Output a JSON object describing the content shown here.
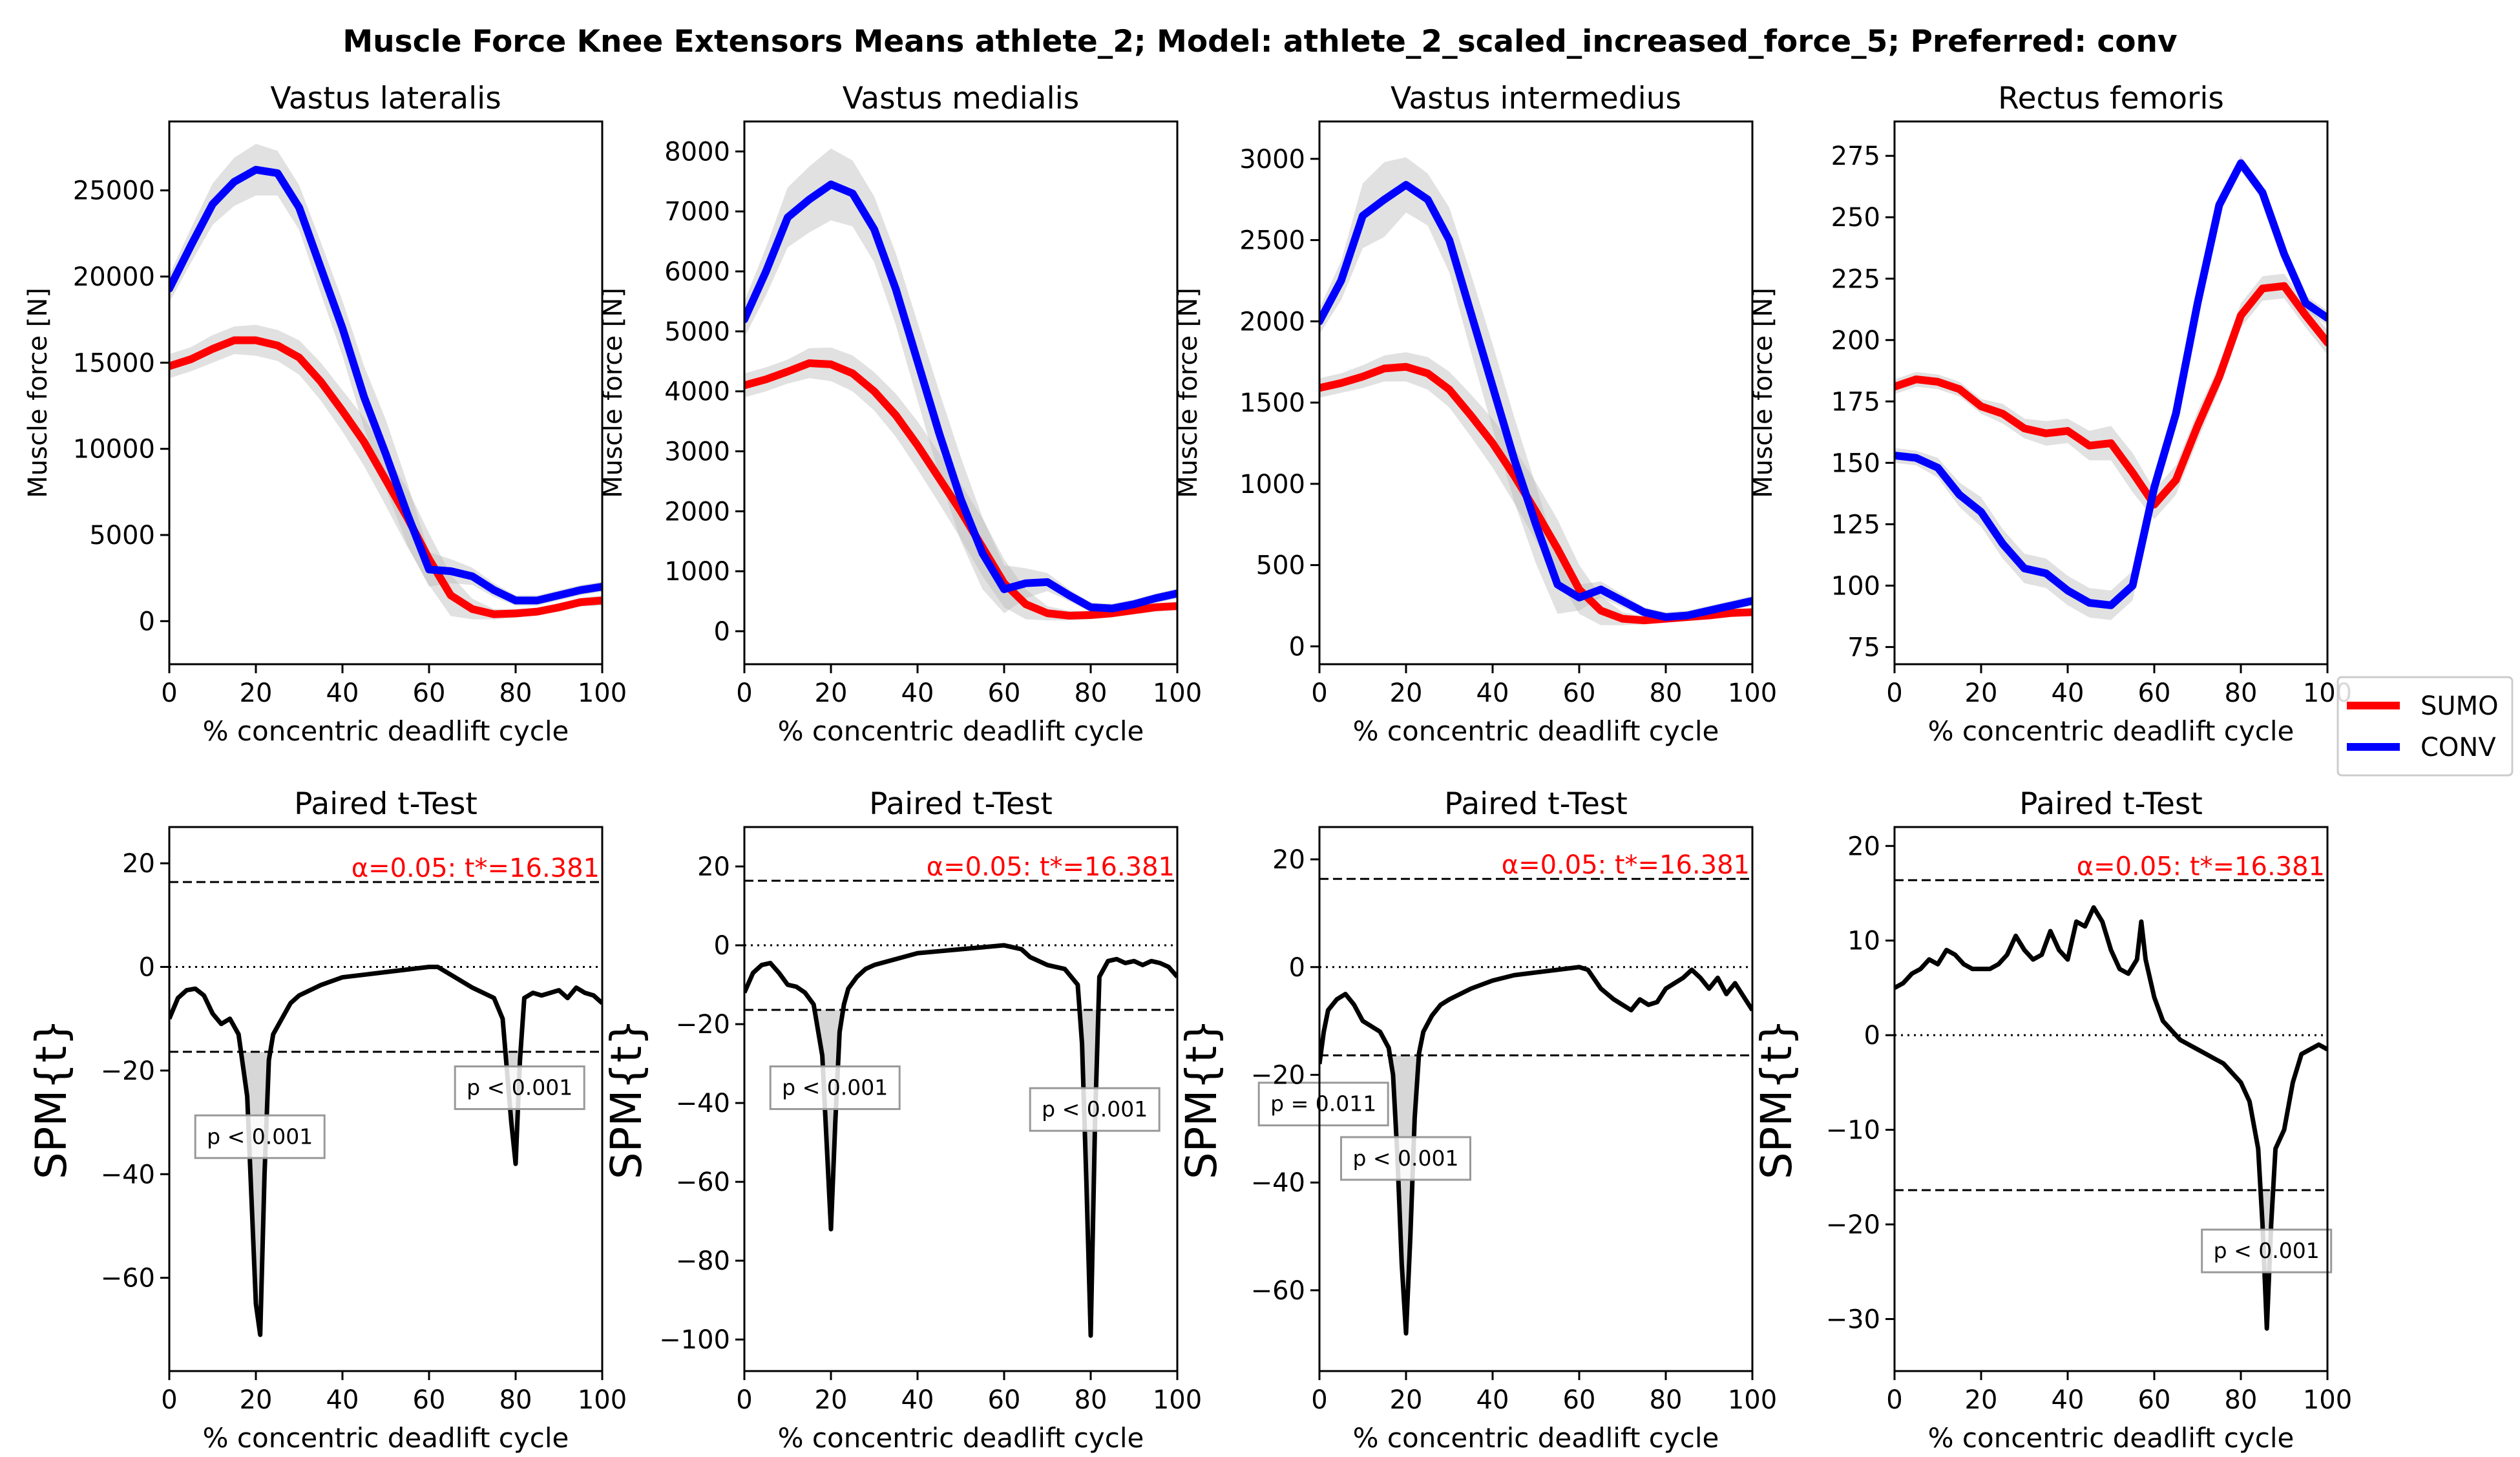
{
  "figure": {
    "title": "Muscle Force Knee Extensors Means athlete_2; Model: athlete_2_scaled_increased_force_5; Preferred: conv",
    "legend": [
      {
        "label": "SUMO",
        "color": "#ff0000"
      },
      {
        "label": "CONV",
        "color": "#0000ff"
      }
    ],
    "legend_placement": "right, between rows"
  },
  "chart_data": [
    {
      "type": "line",
      "title": "Vastus lateralis",
      "xlabel": "% concentric deadlift cycle",
      "ylabel": "Muscle force [N]",
      "xlim": [
        0,
        100
      ],
      "ylim": [
        -2500,
        29000
      ],
      "xticks": [
        0,
        20,
        40,
        60,
        80,
        100
      ],
      "yticks": [
        0,
        5000,
        10000,
        15000,
        20000,
        25000
      ],
      "x": [
        0,
        5,
        10,
        15,
        20,
        25,
        30,
        35,
        40,
        45,
        50,
        55,
        60,
        65,
        70,
        75,
        80,
        85,
        90,
        95,
        100
      ],
      "series": [
        {
          "name": "SUMO",
          "color": "#ff0000",
          "values": [
            14800,
            15200,
            15800,
            16300,
            16300,
            16000,
            15300,
            13900,
            12200,
            10400,
            8200,
            6000,
            3600,
            1500,
            700,
            400,
            450,
            550,
            800,
            1100,
            1200
          ],
          "sd": [
            700,
            700,
            800,
            800,
            900,
            900,
            1000,
            1100,
            1200,
            1400,
            1500,
            1700,
            1500,
            1200,
            600,
            300,
            250,
            200,
            250,
            250,
            300
          ]
        },
        {
          "name": "CONV",
          "color": "#0000ff",
          "values": [
            19300,
            21800,
            24200,
            25500,
            26200,
            26000,
            24000,
            20500,
            17000,
            13000,
            9700,
            6200,
            3000,
            2900,
            2600,
            1800,
            1200,
            1200,
            1500,
            1800,
            2000
          ],
          "sd": [
            800,
            1000,
            1200,
            1400,
            1500,
            1300,
            1300,
            1500,
            1600,
            1800,
            2000,
            1800,
            1000,
            700,
            500,
            400,
            300,
            300,
            300,
            300,
            300
          ]
        }
      ]
    },
    {
      "type": "line",
      "title": "Vastus medialis",
      "xlabel": "% concentric deadlift cycle",
      "ylabel": "Muscle force [N]",
      "xlim": [
        0,
        100
      ],
      "ylim": [
        -550,
        8500
      ],
      "xticks": [
        0,
        20,
        40,
        60,
        80,
        100
      ],
      "yticks": [
        0,
        1000,
        2000,
        3000,
        4000,
        5000,
        6000,
        7000,
        8000
      ],
      "x": [
        0,
        5,
        10,
        15,
        20,
        25,
        30,
        35,
        40,
        45,
        50,
        55,
        60,
        65,
        70,
        75,
        80,
        85,
        90,
        95,
        100
      ],
      "series": [
        {
          "name": "SUMO",
          "color": "#ff0000",
          "values": [
            4100,
            4200,
            4330,
            4470,
            4450,
            4300,
            4000,
            3600,
            3100,
            2550,
            2000,
            1400,
            800,
            450,
            300,
            260,
            270,
            300,
            350,
            400,
            420
          ],
          "sd": [
            200,
            200,
            200,
            250,
            280,
            300,
            320,
            360,
            400,
            420,
            460,
            480,
            400,
            250,
            120,
            80,
            70,
            70,
            70,
            70,
            70
          ]
        },
        {
          "name": "CONV",
          "color": "#0000ff",
          "values": [
            5200,
            6000,
            6900,
            7200,
            7450,
            7300,
            6700,
            5700,
            4500,
            3300,
            2200,
            1300,
            700,
            800,
            820,
            600,
            400,
            380,
            450,
            550,
            630
          ],
          "sd": [
            300,
            400,
            500,
            550,
            600,
            550,
            550,
            600,
            650,
            700,
            700,
            600,
            400,
            250,
            150,
            100,
            80,
            80,
            80,
            80,
            80
          ]
        }
      ]
    },
    {
      "type": "line",
      "title": "Vastus intermedius",
      "xlabel": "% concentric deadlift cycle",
      "ylabel": "Muscle force [N]",
      "xlim": [
        0,
        100
      ],
      "ylim": [
        -110,
        3230
      ],
      "xticks": [
        0,
        20,
        40,
        60,
        80,
        100
      ],
      "yticks": [
        0,
        500,
        1000,
        1500,
        2000,
        2500,
        3000
      ],
      "x": [
        0,
        5,
        10,
        15,
        20,
        25,
        30,
        35,
        40,
        45,
        50,
        55,
        60,
        65,
        70,
        75,
        80,
        85,
        90,
        95,
        100
      ],
      "series": [
        {
          "name": "SUMO",
          "color": "#ff0000",
          "values": [
            1590,
            1620,
            1660,
            1710,
            1720,
            1680,
            1580,
            1420,
            1250,
            1050,
            830,
            600,
            350,
            220,
            170,
            160,
            170,
            180,
            190,
            205,
            210
          ],
          "sd": [
            60,
            60,
            70,
            80,
            90,
            100,
            110,
            130,
            150,
            170,
            180,
            180,
            150,
            90,
            40,
            25,
            20,
            20,
            20,
            20,
            20
          ]
        },
        {
          "name": "CONV",
          "color": "#0000ff",
          "values": [
            2000,
            2250,
            2650,
            2750,
            2840,
            2750,
            2500,
            2050,
            1600,
            1150,
            750,
            380,
            300,
            350,
            280,
            210,
            180,
            190,
            220,
            250,
            280
          ],
          "sd": [
            80,
            120,
            200,
            230,
            170,
            160,
            200,
            240,
            260,
            260,
            240,
            180,
            80,
            50,
            40,
            30,
            30,
            30,
            30,
            30,
            30
          ]
        }
      ]
    },
    {
      "type": "line",
      "title": "Rectus femoris",
      "xlabel": "% concentric deadlift cycle",
      "ylabel": "Muscle force [N]",
      "xlim": [
        0,
        100
      ],
      "ylim": [
        68,
        289
      ],
      "xticks": [
        0,
        20,
        40,
        60,
        80,
        100
      ],
      "yticks": [
        75,
        100,
        125,
        150,
        175,
        200,
        225,
        250,
        275
      ],
      "x": [
        0,
        5,
        10,
        15,
        20,
        25,
        30,
        35,
        40,
        45,
        50,
        55,
        60,
        65,
        70,
        75,
        80,
        85,
        90,
        95,
        100
      ],
      "series": [
        {
          "name": "SUMO",
          "color": "#ff0000",
          "values": [
            181,
            184,
            183,
            180,
            173,
            170,
            164,
            162,
            163,
            157,
            158,
            146,
            133,
            143,
            165,
            185,
            210,
            221,
            222,
            210,
            199
          ],
          "sd": [
            3,
            3,
            3,
            3,
            3,
            4,
            4,
            5,
            5,
            6,
            7,
            8,
            6,
            6,
            6,
            5,
            5,
            5,
            5,
            5,
            5
          ]
        },
        {
          "name": "CONV",
          "color": "#0000ff",
          "values": [
            153,
            152,
            148,
            137,
            130,
            117,
            107,
            105,
            98,
            93,
            92,
            100,
            140,
            170,
            215,
            255,
            272,
            260,
            235,
            215,
            209
          ],
          "sd": [
            3,
            3,
            4,
            5,
            6,
            6,
            6,
            6,
            6,
            6,
            6,
            6,
            6,
            6,
            5,
            4,
            3,
            3,
            3,
            3,
            3
          ]
        }
      ]
    },
    {
      "type": "line",
      "title": "Paired t-Test",
      "xlabel": "% concentric deadlift cycle",
      "ylabel": "SPM{t}",
      "xlim": [
        0,
        100
      ],
      "ylim": [
        -78,
        27
      ],
      "xticks": [
        0,
        20,
        40,
        60,
        80,
        100
      ],
      "yticks": [
        -60,
        -40,
        -20,
        0,
        20
      ],
      "threshold": 16.381,
      "alpha_label": "α=0.05:  t*=16.381",
      "x": [
        0,
        2,
        4,
        6,
        8,
        10,
        12,
        14,
        16,
        18,
        19,
        20,
        21,
        22,
        23,
        24,
        26,
        28,
        30,
        35,
        40,
        45,
        50,
        55,
        60,
        62,
        65,
        70,
        75,
        77,
        78,
        79,
        80,
        81,
        82,
        84,
        86,
        88,
        90,
        92,
        94,
        96,
        98,
        100
      ],
      "values": [
        -10,
        -6,
        -4.5,
        -4.2,
        -5.5,
        -9,
        -11,
        -10,
        -13,
        -25,
        -45,
        -65,
        -71,
        -40,
        -18,
        -13,
        -10,
        -7,
        -5.5,
        -3.5,
        -2,
        -1.5,
        -1,
        -0.5,
        0,
        0,
        -1.5,
        -4,
        -6,
        -10,
        -20,
        -30,
        -38,
        -18,
        -6,
        -5,
        -5.5,
        -5,
        -4.5,
        -6,
        -4,
        -5,
        -5.5,
        -7
      ],
      "annotations": [
        {
          "label": "p < 0.001",
          "x": 20
        },
        {
          "label": "p < 0.001",
          "x": 80
        }
      ]
    },
    {
      "type": "line",
      "title": "Paired t-Test",
      "xlabel": "% concentric deadlift cycle",
      "ylabel": "SPM{t}",
      "xlim": [
        0,
        100
      ],
      "ylim": [
        -108,
        30
      ],
      "xticks": [
        0,
        20,
        40,
        60,
        80,
        100
      ],
      "yticks": [
        -100,
        -80,
        -60,
        -40,
        -20,
        0,
        20
      ],
      "threshold": 16.381,
      "alpha_label": "α=0.05:  t*=16.381",
      "x": [
        0,
        2,
        4,
        6,
        8,
        10,
        12,
        14,
        16,
        18,
        19,
        20,
        21,
        22,
        23,
        24,
        26,
        28,
        30,
        35,
        40,
        45,
        50,
        55,
        60,
        64,
        66,
        70,
        74,
        77,
        78,
        79,
        80,
        81,
        82,
        84,
        86,
        88,
        90,
        92,
        94,
        96,
        98,
        100
      ],
      "values": [
        -12,
        -7,
        -5,
        -4.5,
        -7,
        -10,
        -10.5,
        -12,
        -15,
        -28,
        -50,
        -72,
        -45,
        -22,
        -15,
        -11,
        -8,
        -6,
        -5,
        -3.5,
        -2,
        -1.5,
        -1,
        -0.5,
        0,
        -1,
        -3,
        -5,
        -6,
        -10,
        -25,
        -60,
        -99,
        -45,
        -8,
        -4,
        -3.5,
        -4.5,
        -4,
        -5,
        -4,
        -4.5,
        -5.5,
        -8
      ],
      "annotations": [
        {
          "label": "p < 0.001",
          "x": 20
        },
        {
          "label": "p < 0.001",
          "x": 80
        }
      ]
    },
    {
      "type": "line",
      "title": "Paired t-Test",
      "xlabel": "% concentric deadlift cycle",
      "ylabel": "SPM{t}",
      "xlim": [
        0,
        100
      ],
      "ylim": [
        -75,
        26
      ],
      "xticks": [
        0,
        20,
        40,
        60,
        80,
        100
      ],
      "yticks": [
        -60,
        -40,
        -20,
        0,
        20
      ],
      "threshold": 16.381,
      "alpha_label": "α=0.05:  t*=16.381",
      "x": [
        0,
        1,
        2,
        4,
        6,
        8,
        10,
        12,
        14,
        16,
        17,
        18,
        19,
        20,
        21,
        22,
        23,
        24,
        26,
        28,
        30,
        35,
        40,
        45,
        50,
        55,
        60,
        62,
        65,
        68,
        70,
        72,
        74,
        76,
        78,
        80,
        82,
        84,
        86,
        88,
        90,
        92,
        94,
        96,
        98,
        100
      ],
      "values": [
        -18,
        -12,
        -8,
        -6,
        -5,
        -7,
        -10,
        -11,
        -12,
        -15,
        -20,
        -35,
        -55,
        -68,
        -50,
        -28,
        -16,
        -12,
        -9,
        -7,
        -6,
        -4,
        -2.5,
        -1.5,
        -1,
        -0.5,
        0,
        -0.5,
        -4,
        -6,
        -7,
        -8,
        -6,
        -7,
        -6.5,
        -4,
        -3,
        -2,
        -0.5,
        -2,
        -4,
        -2,
        -5,
        -3,
        -5.5,
        -8
      ],
      "annotations": [
        {
          "label": "p = 0.011",
          "x": 0
        },
        {
          "label": "p < 0.001",
          "x": 20
        }
      ]
    },
    {
      "type": "line",
      "title": "Paired t-Test",
      "xlabel": "% concentric deadlift cycle",
      "ylabel": "SPM{t}",
      "xlim": [
        0,
        100
      ],
      "ylim": [
        -35.5,
        22
      ],
      "xticks": [
        0,
        20,
        40,
        60,
        80,
        100
      ],
      "yticks": [
        -30,
        -20,
        -10,
        0,
        10,
        20
      ],
      "threshold": 16.381,
      "alpha_label": "α=0.05:  t*=16.381",
      "x": [
        0,
        2,
        4,
        6,
        8,
        10,
        12,
        14,
        16,
        18,
        20,
        22,
        24,
        26,
        28,
        30,
        32,
        34,
        36,
        38,
        40,
        42,
        44,
        46,
        48,
        50,
        52,
        54,
        56,
        57,
        58,
        60,
        62,
        64,
        66,
        68,
        70,
        72,
        74,
        76,
        78,
        80,
        82,
        84,
        85,
        86,
        87,
        88,
        90,
        92,
        94,
        96,
        98,
        100
      ],
      "values": [
        5,
        5.5,
        6.5,
        7,
        8,
        7.5,
        9,
        8.5,
        7.5,
        7,
        7,
        7,
        7.5,
        8.5,
        10.5,
        9,
        8,
        8.5,
        11,
        9,
        8,
        12,
        11.5,
        13.5,
        12,
        9,
        7,
        6.5,
        8,
        12,
        8,
        4,
        1.5,
        0.5,
        -0.5,
        -1,
        -1.5,
        -2,
        -2.5,
        -3,
        -4,
        -5,
        -7,
        -12,
        -20,
        -31,
        -20,
        -12,
        -10,
        -5,
        -2,
        -1.5,
        -1,
        -1.5
      ],
      "annotations": [
        {
          "label": "p < 0.001",
          "x": 85
        }
      ]
    }
  ]
}
